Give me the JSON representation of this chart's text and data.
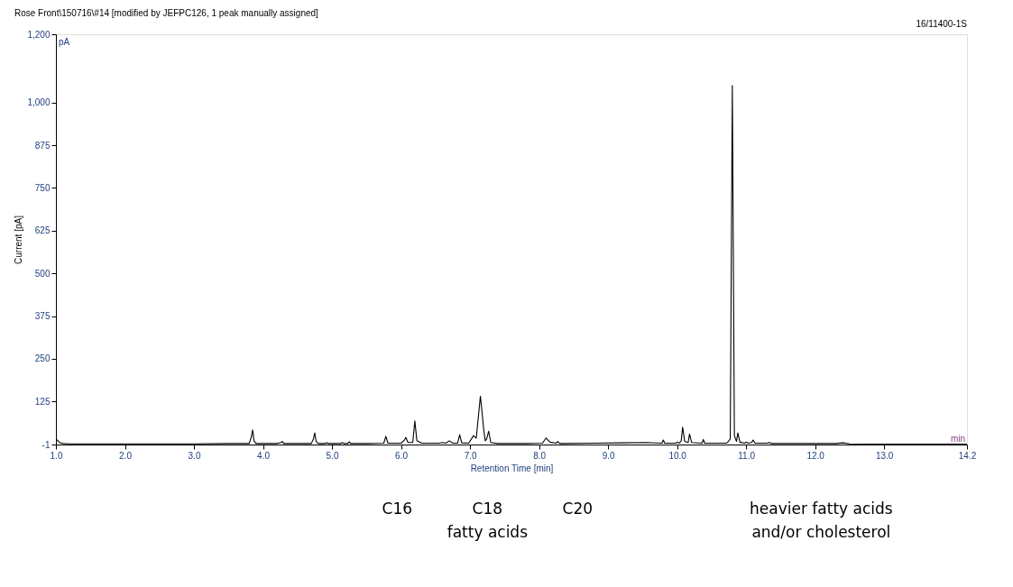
{
  "chart_data": {
    "type": "line",
    "title": "Rose  Front\\150716\\#14 [modified by JEFPC126, 1 peak manually assigned]",
    "xlabel": "Retention Time [min]",
    "ylabel": "Current [pA]",
    "annotations": [
      "16/11400-1S",
      "pA",
      "min",
      "C16",
      "C18",
      "C20",
      "fatty acids",
      "heavier fatty acids",
      "and/or cholesterol"
    ],
    "xlim": [
      1.0,
      14.2
    ],
    "ylim": [
      -1,
      1200
    ],
    "xticks": [
      {
        "value": 1,
        "label": "1.0"
      },
      {
        "value": 2,
        "label": "2.0"
      },
      {
        "value": 3,
        "label": "3.0"
      },
      {
        "value": 4,
        "label": "4.0"
      },
      {
        "value": 5,
        "label": "5.0"
      },
      {
        "value": 6,
        "label": "6.0"
      },
      {
        "value": 7,
        "label": "7.0"
      },
      {
        "value": 8,
        "label": "8.0"
      },
      {
        "value": 9,
        "label": "9.0"
      },
      {
        "value": 10,
        "label": "10.0"
      },
      {
        "value": 11,
        "label": "11.0"
      },
      {
        "value": 12,
        "label": "12.0"
      },
      {
        "value": 13,
        "label": "13.0"
      },
      14.2
    ],
    "yticks": [
      -1,
      125,
      250,
      375,
      500,
      625,
      750,
      875,
      {
        "value": 1000,
        "label": "1,000"
      },
      {
        "value": 1200,
        "label": "1,200"
      }
    ],
    "grid": false,
    "marker": "none",
    "line_style": "solid",
    "series": [
      {
        "color": "#000000",
        "x": [
          1.0,
          1.02,
          1.05,
          1.1,
          1.2,
          1.5,
          2.0,
          2.5,
          3.0,
          3.5,
          3.8,
          3.83,
          3.85,
          3.87,
          3.9,
          4.2,
          4.26,
          4.28,
          4.3,
          4.7,
          4.73,
          4.75,
          4.77,
          4.8,
          4.9,
          4.92,
          4.95,
          5.13,
          5.15,
          5.17,
          5.23,
          5.25,
          5.27,
          5.5,
          5.75,
          5.78,
          5.81,
          6.0,
          6.05,
          6.07,
          6.1,
          6.17,
          6.2,
          6.23,
          6.3,
          6.55,
          6.6,
          6.65,
          6.7,
          6.75,
          6.82,
          6.85,
          6.88,
          6.98,
          7.05,
          7.09,
          7.15,
          7.2,
          7.22,
          7.24,
          7.27,
          7.3,
          7.4,
          7.8,
          8.05,
          8.1,
          8.16,
          8.25,
          8.27,
          8.3,
          8.8,
          9.2,
          9.55,
          9.78,
          9.8,
          9.82,
          9.98,
          10.0,
          10.03,
          10.06,
          10.08,
          10.11,
          10.16,
          10.18,
          10.21,
          10.36,
          10.38,
          10.4,
          10.72,
          10.77,
          10.8,
          10.83,
          10.86,
          10.88,
          10.91,
          10.98,
          11.0,
          11.03,
          11.08,
          11.1,
          11.13,
          11.3,
          11.33,
          11.37,
          11.8,
          12.3,
          12.4,
          12.5,
          13.0,
          13.5,
          14.2
        ],
        "values": [
          15,
          12,
          5,
          2,
          1,
          1,
          1,
          1,
          1,
          2,
          2,
          20,
          42,
          10,
          2,
          2,
          5,
          8,
          2,
          2,
          15,
          33,
          8,
          2,
          2,
          4,
          2,
          2,
          5,
          2,
          2,
          7,
          2,
          2,
          3,
          23,
          3,
          3,
          12,
          20,
          5,
          5,
          68,
          10,
          3,
          3,
          5,
          3,
          10,
          3,
          3,
          28,
          4,
          3,
          25,
          18,
          141,
          40,
          10,
          15,
          38,
          5,
          2,
          2,
          3,
          18,
          6,
          3,
          8,
          2,
          3,
          4,
          5,
          3,
          12,
          3,
          3,
          6,
          3,
          10,
          50,
          8,
          5,
          30,
          5,
          3,
          14,
          3,
          3,
          15,
          1050,
          25,
          8,
          33,
          6,
          3,
          6,
          3,
          5,
          12,
          3,
          3,
          5,
          2,
          2,
          2,
          4,
          1,
          0,
          0,
          0
        ]
      }
    ]
  }
}
